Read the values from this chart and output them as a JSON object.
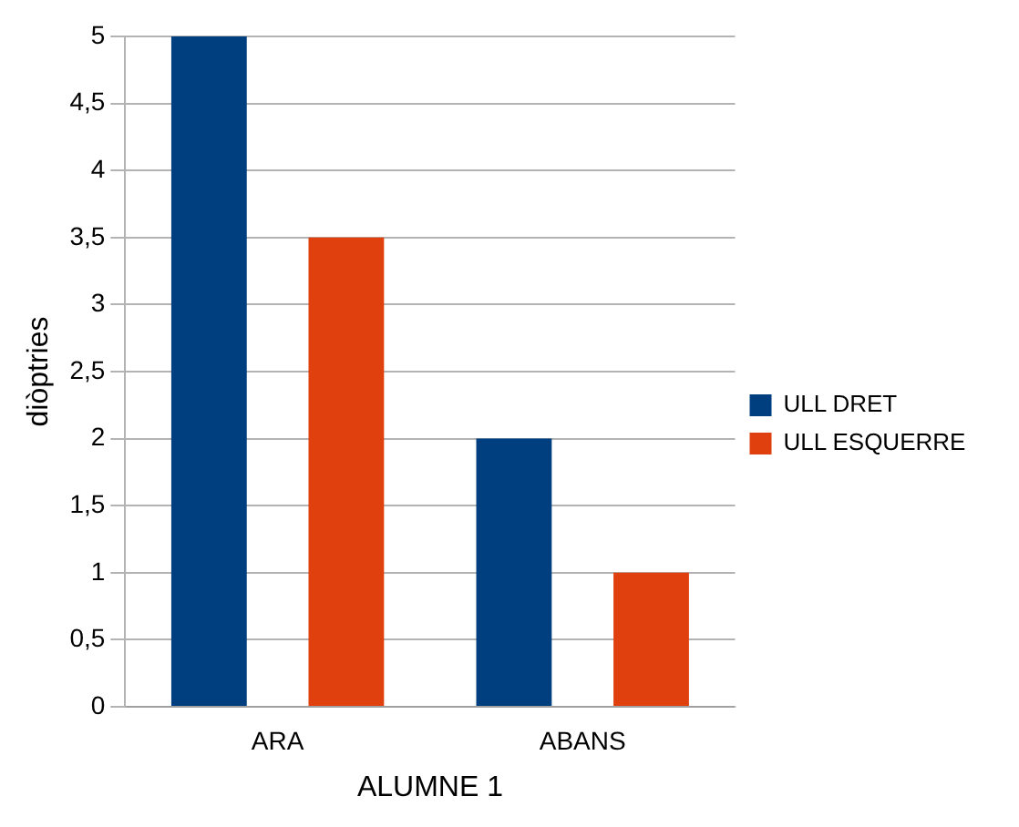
{
  "chart_data": {
    "type": "bar",
    "xlabel": "ALUMNE 1",
    "ylabel": "diòptries",
    "categories": [
      "ARA",
      "ABANS"
    ],
    "series": [
      {
        "name": "ULL DRET",
        "color": "#003f7f",
        "values": [
          5,
          2
        ]
      },
      {
        "name": "ULL ESQUERRE",
        "color": "#e0400e",
        "values": [
          3.5,
          1
        ]
      }
    ],
    "ylim": [
      0,
      5
    ],
    "yticks": [
      0,
      {
        "value": 0.5,
        "label": "0,5"
      },
      1,
      {
        "value": 1.5,
        "label": "1,5"
      },
      2,
      {
        "value": 2.5,
        "label": "2,5"
      },
      3,
      {
        "value": 3.5,
        "label": "3,5"
      },
      4,
      {
        "value": 4.5,
        "label": "4,5"
      },
      5
    ],
    "grid": "y",
    "legend": "right"
  }
}
